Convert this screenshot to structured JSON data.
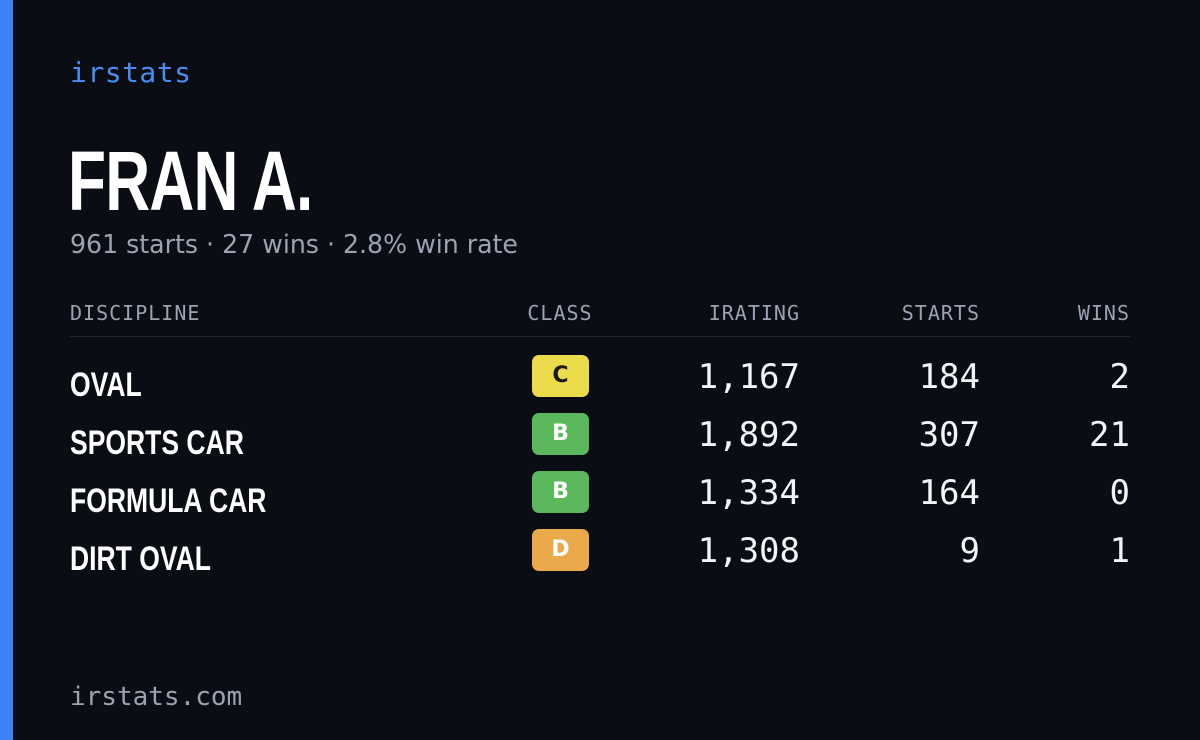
{
  "brand": "irstats",
  "player": {
    "name": "FRAN A.",
    "summary": "961 starts · 27 wins · 2.8% win rate"
  },
  "table": {
    "headers": {
      "discipline": "DISCIPLINE",
      "class": "CLASS",
      "irating": "IRATING",
      "starts": "STARTS",
      "wins": "WINS"
    },
    "rows": [
      {
        "discipline": "OVAL",
        "class": "C",
        "class_bg": "#ecdb4a",
        "class_fg": "#1a1a1a",
        "irating": "1,167",
        "starts": "184",
        "wins": "2"
      },
      {
        "discipline": "SPORTS CAR",
        "class": "B",
        "class_bg": "#5cb85c",
        "class_fg": "#ffffff",
        "irating": "1,892",
        "starts": "307",
        "wins": "21"
      },
      {
        "discipline": "FORMULA CAR",
        "class": "B",
        "class_bg": "#5cb85c",
        "class_fg": "#ffffff",
        "irating": "1,334",
        "starts": "164",
        "wins": "0"
      },
      {
        "discipline": "DIRT OVAL",
        "class": "D",
        "class_bg": "#eaa94a",
        "class_fg": "#ffffff",
        "irating": "1,308",
        "starts": "9",
        "wins": "1"
      }
    ]
  },
  "footer": "irstats.com",
  "colors": {
    "background": "#0a0d14",
    "accent": "#3b82f6",
    "muted": "#9aa3b2"
  }
}
